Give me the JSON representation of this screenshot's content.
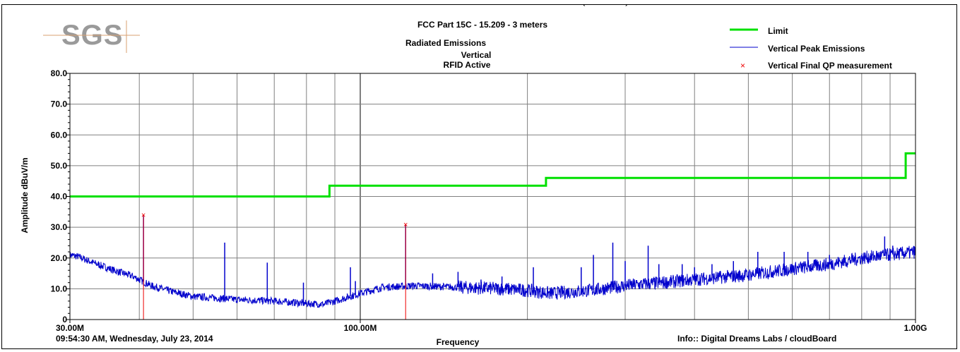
{
  "header": {
    "clipped_title": "(    ———    )",
    "logo": "SGS",
    "title": "FCC Part 15C - 15.209 - 3 meters",
    "subtitle": "Radiated Emissions",
    "line3": "Vertical",
    "line4": "RFID Active"
  },
  "footer": {
    "timestamp": "09:54:30 AM, Wednesday, July 23, 2014",
    "info": "Info:: Digital Dreams Labs / cloudBoard"
  },
  "colors": {
    "limit": "#00e000",
    "peak": "#0000cc",
    "qp": "#ee0000",
    "grid": "#808080",
    "logo": "#9a9a9a",
    "logo_line": "#d8a070"
  },
  "chart_data": {
    "type": "line",
    "xlabel": "Frequency",
    "ylabel": "Amplitude dBuV/m",
    "xscale": "log",
    "xlim": [
      30,
      1000
    ],
    "ylim": [
      0,
      80
    ],
    "x_ticks": [
      {
        "value": 30,
        "label": "30.00M"
      },
      {
        "value": 100,
        "label": "100.00M"
      },
      {
        "value": 1000,
        "label": "1.00G"
      }
    ],
    "y_ticks": [
      {
        "value": 0,
        "label": "0"
      },
      {
        "value": 10,
        "label": "10.0"
      },
      {
        "value": 20,
        "label": "20.0"
      },
      {
        "value": 30,
        "label": "30.0"
      },
      {
        "value": 40,
        "label": "40.0"
      },
      {
        "value": 50,
        "label": "50.0"
      },
      {
        "value": 60,
        "label": "60.0"
      },
      {
        "value": 70,
        "label": "70.0"
      },
      {
        "value": 80,
        "label": "80.0"
      }
    ],
    "legend_position": "top-right",
    "series": [
      {
        "name": "Limit",
        "style": "step",
        "points": [
          [
            30,
            40
          ],
          [
            88,
            40
          ],
          [
            88,
            43.5
          ],
          [
            216,
            43.5
          ],
          [
            216,
            46
          ],
          [
            960,
            46
          ],
          [
            960,
            54
          ],
          [
            1000,
            54
          ]
        ]
      },
      {
        "name": "Vertical Peak Emissions",
        "style": "noisy",
        "baseline": [
          [
            30,
            21
          ],
          [
            31,
            20.5
          ],
          [
            33,
            18.5
          ],
          [
            36,
            16
          ],
          [
            39,
            14
          ],
          [
            40.5,
            12.5
          ],
          [
            42,
            11
          ],
          [
            46,
            9
          ],
          [
            50,
            7.5
          ],
          [
            60,
            6.5
          ],
          [
            70,
            6
          ],
          [
            80,
            5.2
          ],
          [
            86,
            5
          ],
          [
            92,
            6.5
          ],
          [
            100,
            8.5
          ],
          [
            110,
            10.5
          ],
          [
            125,
            11
          ],
          [
            150,
            10.5
          ],
          [
            180,
            10
          ],
          [
            200,
            9.5
          ],
          [
            220,
            8.5
          ],
          [
            260,
            9.5
          ],
          [
            300,
            11
          ],
          [
            350,
            12
          ],
          [
            400,
            13
          ],
          [
            500,
            14.5
          ],
          [
            600,
            16.5
          ],
          [
            700,
            18
          ],
          [
            800,
            20
          ],
          [
            1000,
            22
          ]
        ],
        "spikes": [
          [
            40.7,
            34
          ],
          [
            57,
            25
          ],
          [
            68,
            18.5
          ],
          [
            79,
            12
          ],
          [
            96,
            17
          ],
          [
            98,
            12.5
          ],
          [
            120.7,
            31
          ],
          [
            135,
            15
          ],
          [
            150,
            15.5
          ],
          [
            165,
            13
          ],
          [
            180,
            14
          ],
          [
            205,
            17
          ],
          [
            250,
            17
          ],
          [
            263,
            21
          ],
          [
            285,
            25
          ],
          [
            300,
            19
          ],
          [
            330,
            24
          ],
          [
            345,
            18
          ],
          [
            380,
            18
          ],
          [
            400,
            17
          ],
          [
            430,
            18
          ],
          [
            470,
            19
          ],
          [
            520,
            22
          ],
          [
            580,
            22
          ],
          [
            640,
            22
          ],
          [
            700,
            21
          ],
          [
            880,
            27
          ],
          [
            910,
            24
          ]
        ]
      },
      {
        "name": "Vertical Final QP measurement",
        "style": "markers",
        "points": [
          [
            40.7,
            34
          ],
          [
            120.7,
            31
          ]
        ]
      }
    ]
  }
}
